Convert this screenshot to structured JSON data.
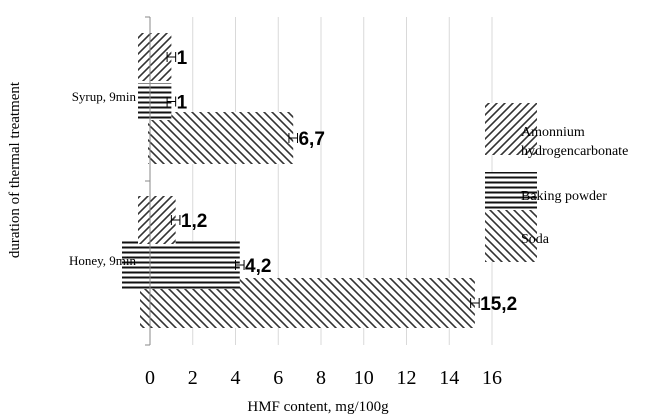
{
  "chart_data": {
    "type": "bar",
    "orientation": "horizontal",
    "xlabel": "HMF content, mg/100g",
    "ylabel": "duration of thermal treatment",
    "xlim": [
      0,
      16
    ],
    "xticks": [
      0,
      2,
      4,
      6,
      8,
      10,
      12,
      14,
      16
    ],
    "grid": true,
    "legend_position": "right",
    "categories": [
      "Honey, 9min",
      "Syrup, 9min"
    ],
    "series": [
      {
        "name": "Soda",
        "pattern": "diagonal-down",
        "values": [
          15.2,
          6.7
        ],
        "labels": [
          "15,2",
          "6,7"
        ]
      },
      {
        "name": "Baking powder",
        "pattern": "horizontal",
        "values": [
          4.2,
          1
        ],
        "labels": [
          "4,2",
          "1"
        ]
      },
      {
        "name": "Amonnium hydrogencarbonate",
        "legend_lines": [
          "Amonnium",
          "hydrogencarbonate"
        ],
        "pattern": "diagonal-up",
        "values": [
          1.2,
          1
        ],
        "labels": [
          "1,2",
          "1"
        ]
      }
    ]
  }
}
